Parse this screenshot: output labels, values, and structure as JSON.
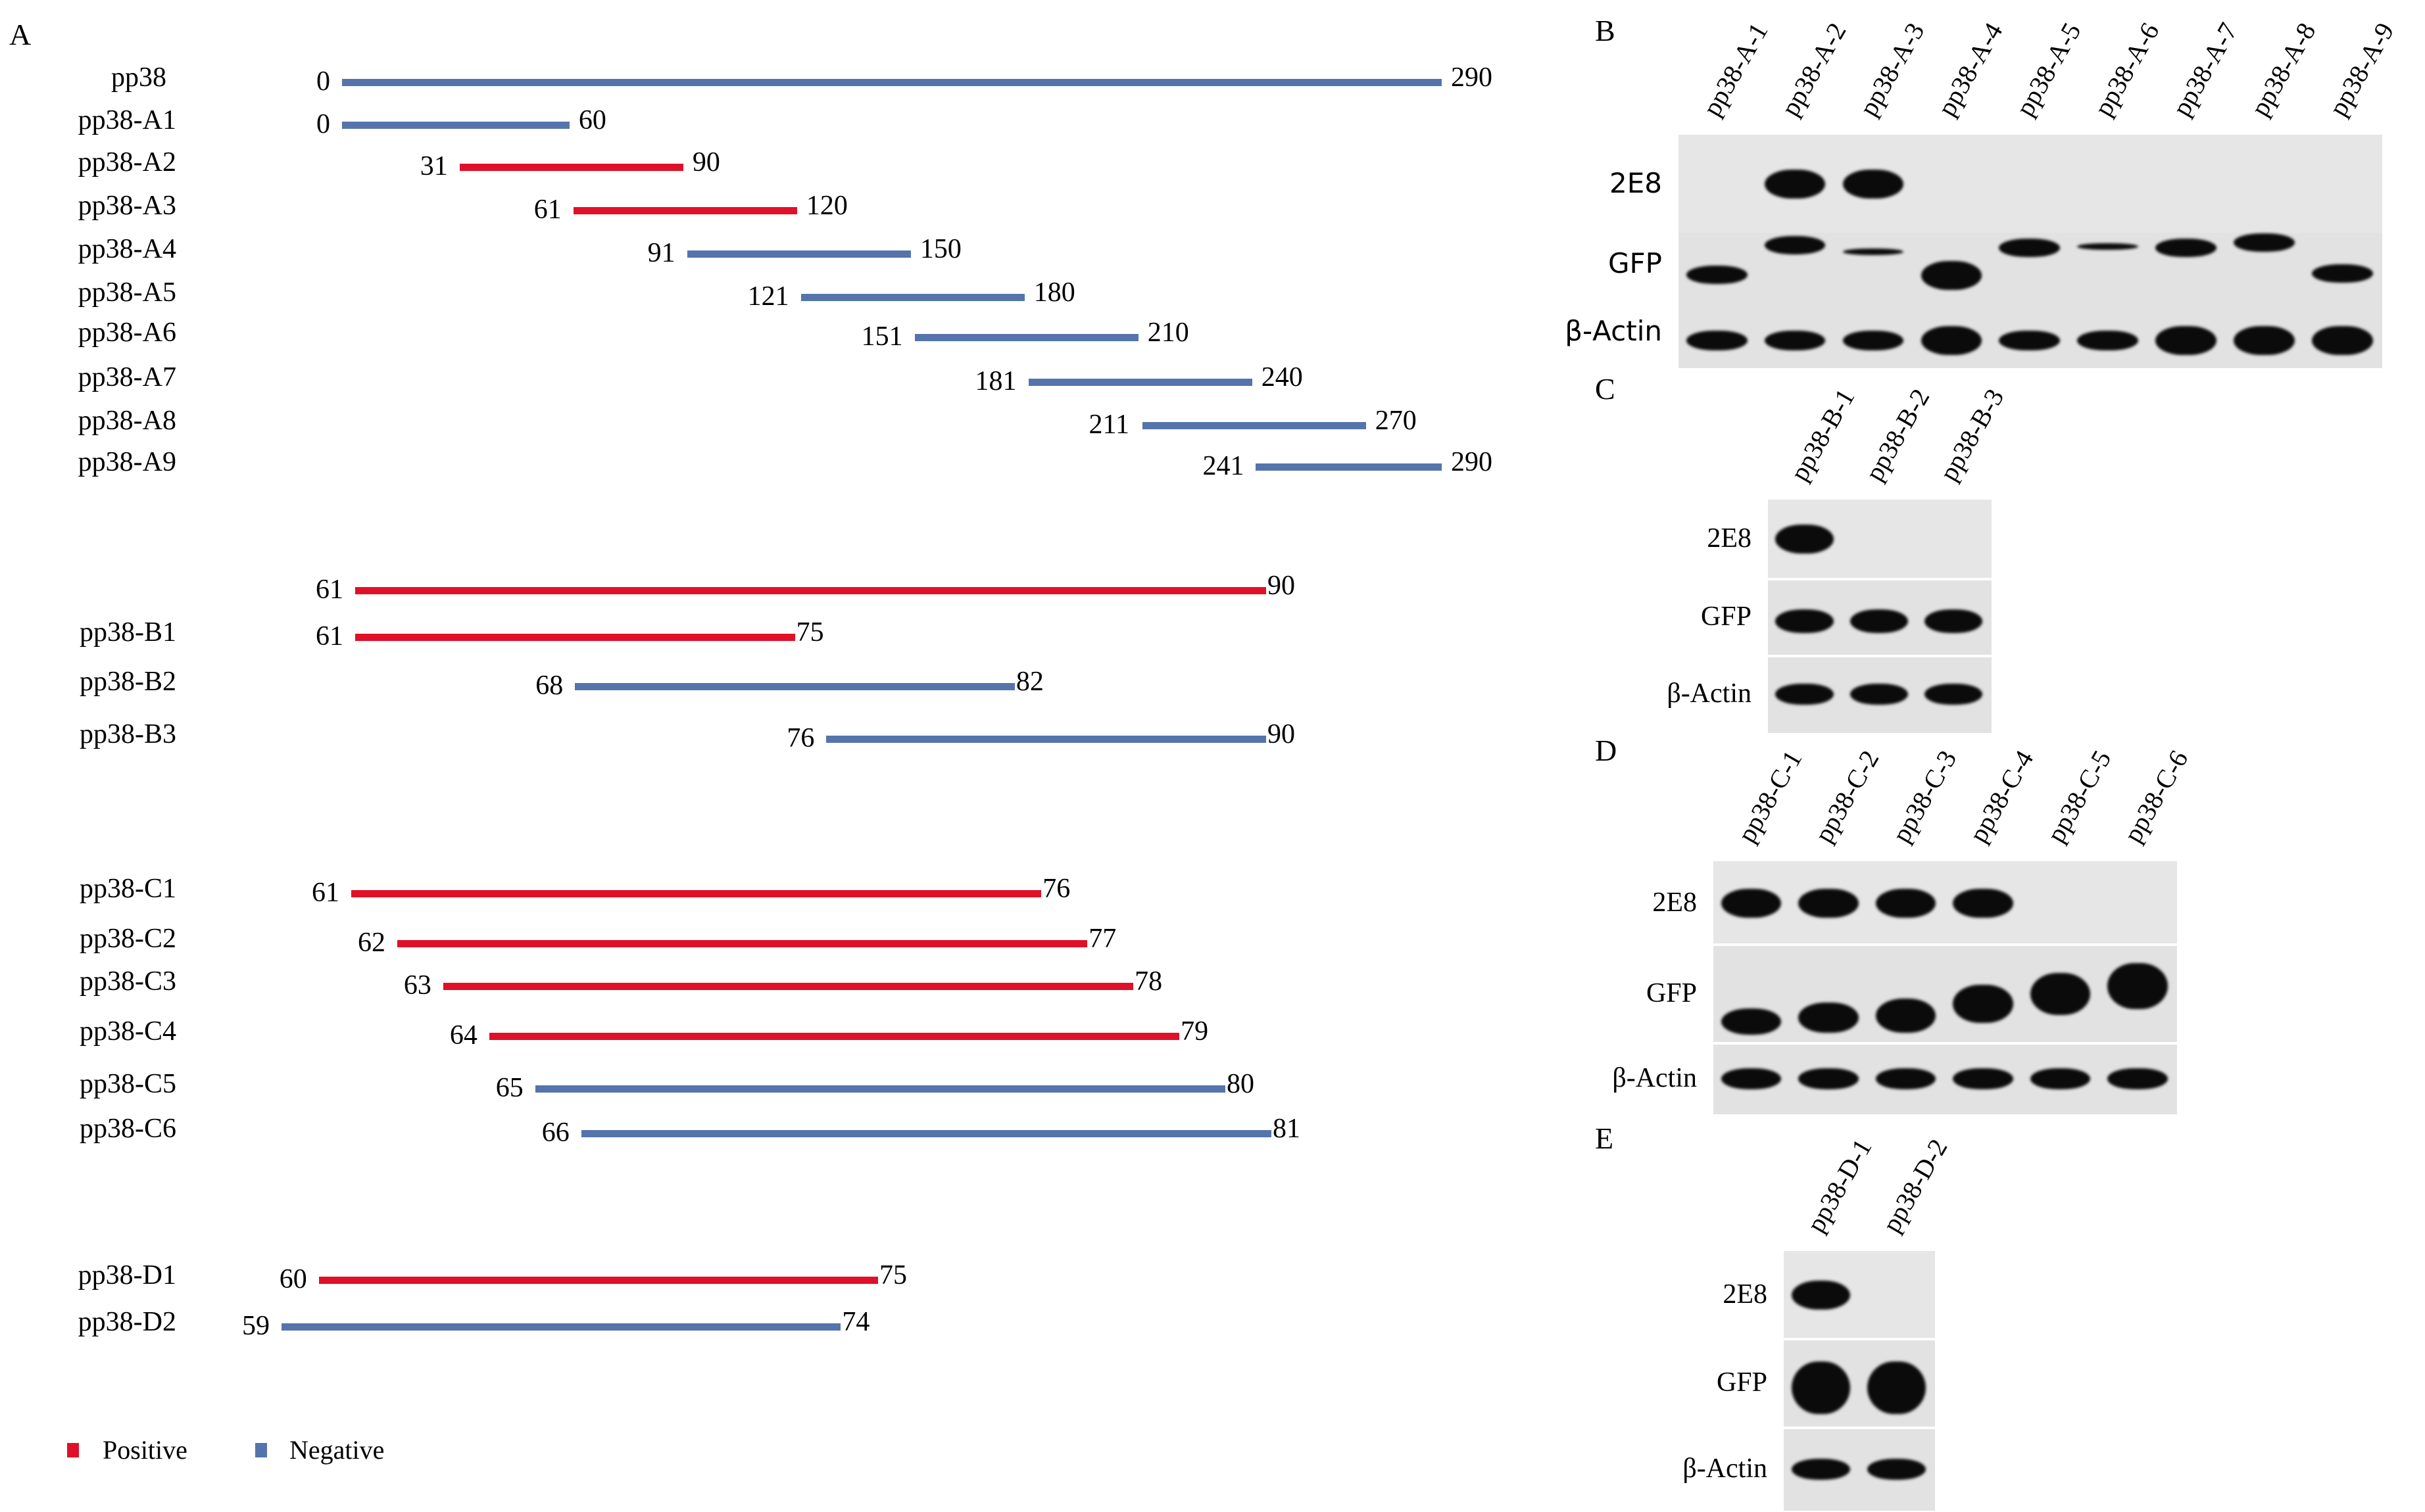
{
  "legend": {
    "positive": {
      "label": "Positive",
      "color": "#e01028"
    },
    "negative": {
      "label": "Negative",
      "color": "#5574ac"
    }
  },
  "panel_a": {
    "letter": "A",
    "groups": [
      {
        "rows": [
          {
            "label": "pp38",
            "start": 0,
            "end": 290,
            "result": "negative"
          },
          {
            "label": "pp38-A1",
            "start": 0,
            "end": 60,
            "result": "negative"
          },
          {
            "label": "pp38-A2",
            "start": 31,
            "end": 90,
            "result": "positive"
          },
          {
            "label": "pp38-A3",
            "start": 61,
            "end": 120,
            "result": "positive"
          },
          {
            "label": "pp38-A4",
            "start": 91,
            "end": 150,
            "result": "negative"
          },
          {
            "label": "pp38-A5",
            "start": 121,
            "end": 180,
            "result": "negative"
          },
          {
            "label": "pp38-A6",
            "start": 151,
            "end": 210,
            "result": "negative"
          },
          {
            "label": "pp38-A7",
            "start": 181,
            "end": 240,
            "result": "negative"
          },
          {
            "label": "pp38-A8",
            "start": 211,
            "end": 270,
            "result": "negative"
          },
          {
            "label": "pp38-A9",
            "start": 241,
            "end": 290,
            "result": "negative"
          }
        ]
      },
      {
        "rows": [
          {
            "label": "",
            "start": 61,
            "end": 90,
            "result": "positive"
          },
          {
            "label": "pp38-B1",
            "start": 61,
            "end": 75,
            "result": "positive"
          },
          {
            "label": "pp38-B2",
            "start": 68,
            "end": 82,
            "result": "negative"
          },
          {
            "label": "pp38-B3",
            "start": 76,
            "end": 90,
            "result": "negative"
          }
        ]
      },
      {
        "rows": [
          {
            "label": "pp38-C1",
            "start": 61,
            "end": 76,
            "result": "positive"
          },
          {
            "label": "pp38-C2",
            "start": 62,
            "end": 77,
            "result": "positive"
          },
          {
            "label": "pp38-C3",
            "start": 63,
            "end": 78,
            "result": "positive"
          },
          {
            "label": "pp38-C4",
            "start": 64,
            "end": 79,
            "result": "positive"
          },
          {
            "label": "pp38-C5",
            "start": 65,
            "end": 80,
            "result": "negative"
          },
          {
            "label": "pp38-C6",
            "start": 66,
            "end": 81,
            "result": "negative"
          }
        ]
      },
      {
        "rows": [
          {
            "label": "pp38-D1",
            "start": 60,
            "end": 75,
            "result": "positive"
          },
          {
            "label": "pp38-D2",
            "start": 59,
            "end": 74,
            "result": "negative"
          }
        ]
      }
    ]
  },
  "blots": [
    {
      "letter": "B",
      "lanes": [
        "pp38-A-1",
        "pp38-A-2",
        "pp38-A-3",
        "pp38-A-4",
        "pp38-A-5",
        "pp38-A-6",
        "pp38-A-7",
        "pp38-A-8",
        "pp38-A-9"
      ],
      "antibodies": [
        "2E8",
        "GFP",
        "β-Actin"
      ],
      "signal_2E8": [
        0,
        1,
        1,
        0,
        0,
        0,
        0,
        0,
        0
      ]
    },
    {
      "letter": "C",
      "lanes": [
        "pp38-B-1",
        "pp38-B-2",
        "pp38-B-3"
      ],
      "antibodies": [
        "2E8",
        "GFP",
        "β-Actin"
      ],
      "signal_2E8": [
        1,
        0,
        0
      ]
    },
    {
      "letter": "D",
      "lanes": [
        "pp38-C-1",
        "pp38-C-2",
        "pp38-C-3",
        "pp38-C-4",
        "pp38-C-5",
        "pp38-C-6"
      ],
      "antibodies": [
        "2E8",
        "GFP",
        "β-Actin"
      ],
      "signal_2E8": [
        1,
        1,
        1,
        1,
        0,
        0
      ]
    },
    {
      "letter": "E",
      "lanes": [
        "pp38-D-1",
        "pp38-D-2"
      ],
      "antibodies": [
        "2E8",
        "GFP",
        "β-Actin"
      ],
      "signal_2E8": [
        1,
        0
      ]
    }
  ]
}
